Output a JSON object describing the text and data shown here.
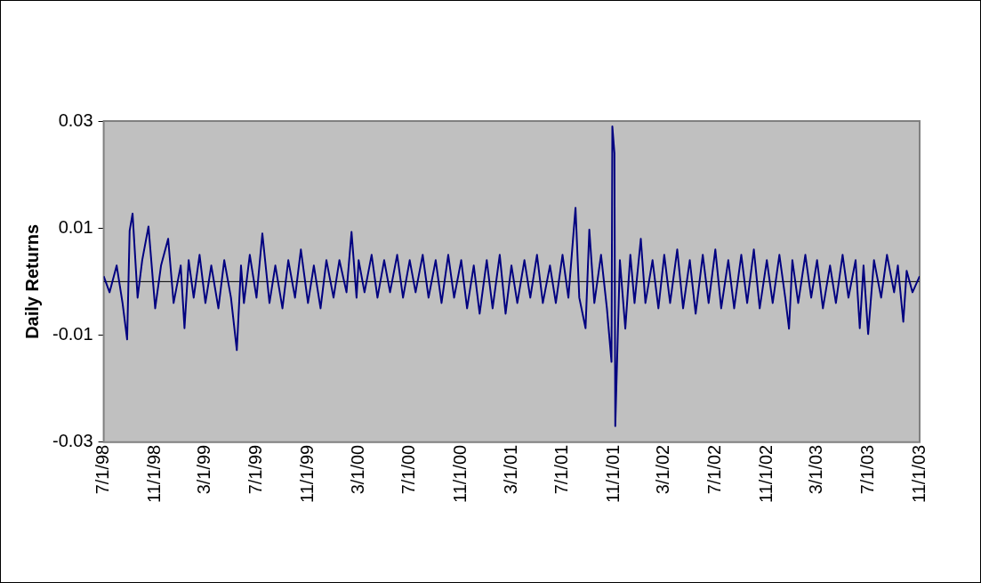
{
  "chart_data": {
    "type": "line",
    "ylabel": "Daily Returns",
    "ylim": [
      -0.03,
      0.03
    ],
    "yticks": [
      -0.03,
      -0.01,
      0.01,
      0.03
    ],
    "xlim": [
      "1998-07-01",
      "2003-11-01"
    ],
    "xticks": [
      {
        "value": "1998-07-01",
        "label": "7/1/98"
      },
      {
        "value": "1998-11-01",
        "label": "11/1/98"
      },
      {
        "value": "1999-03-01",
        "label": "3/1/99"
      },
      {
        "value": "1999-07-01",
        "label": "7/1/99"
      },
      {
        "value": "1999-11-01",
        "label": "11/1/99"
      },
      {
        "value": "2000-03-01",
        "label": "3/1/00"
      },
      {
        "value": "2000-07-01",
        "label": "7/1/00"
      },
      {
        "value": "2000-11-01",
        "label": "11/1/00"
      },
      {
        "value": "2001-03-01",
        "label": "3/1/01"
      },
      {
        "value": "2001-07-01",
        "label": "7/1/01"
      },
      {
        "value": "2001-11-01",
        "label": "11/1/01"
      },
      {
        "value": "2002-03-01",
        "label": "3/1/02"
      },
      {
        "value": "2002-07-01",
        "label": "7/1/02"
      },
      {
        "value": "2002-11-01",
        "label": "11/1/02"
      },
      {
        "value": "2003-03-01",
        "label": "3/1/03"
      },
      {
        "value": "2003-07-01",
        "label": "7/1/03"
      },
      {
        "value": "2003-11-01",
        "label": "11/1/03"
      }
    ],
    "ref_lines": [
      {
        "axis": "y",
        "value": 0,
        "color": "#000000"
      }
    ],
    "legend": false,
    "marker": "none",
    "line_style": "solid",
    "series": [
      {
        "color": "#000080",
        "x": [
          "1998-07-01",
          "1998-07-15",
          "1998-08-01",
          "1998-08-15",
          "1998-08-26",
          "1998-09-01",
          "1998-09-08",
          "1998-09-20",
          "1998-10-01",
          "1998-10-16",
          "1998-11-01",
          "1998-11-15",
          "1998-12-02",
          "1998-12-15",
          "1999-01-01",
          "1999-01-10",
          "1999-01-20",
          "1999-02-01",
          "1999-02-15",
          "1999-03-01",
          "1999-03-15",
          "1999-04-01",
          "1999-04-15",
          "1999-05-01",
          "1999-05-15",
          "1999-05-25",
          "1999-06-01",
          "1999-06-15",
          "1999-07-01",
          "1999-07-15",
          "1999-08-01",
          "1999-08-15",
          "1999-09-01",
          "1999-09-15",
          "1999-10-01",
          "1999-10-15",
          "1999-11-01",
          "1999-11-15",
          "1999-12-01",
          "1999-12-15",
          "2000-01-01",
          "2000-01-15",
          "2000-02-01",
          "2000-02-13",
          "2000-02-25",
          "2000-03-01",
          "2000-03-15",
          "2000-04-01",
          "2000-04-15",
          "2000-05-01",
          "2000-05-15",
          "2000-06-01",
          "2000-06-15",
          "2000-07-01",
          "2000-07-15",
          "2000-08-01",
          "2000-08-15",
          "2000-09-01",
          "2000-09-15",
          "2000-10-01",
          "2000-10-15",
          "2000-11-01",
          "2000-11-15",
          "2000-12-01",
          "2000-12-15",
          "2001-01-01",
          "2001-01-15",
          "2001-02-01",
          "2001-02-15",
          "2001-03-01",
          "2001-03-15",
          "2001-04-01",
          "2001-04-15",
          "2001-05-01",
          "2001-05-15",
          "2001-06-01",
          "2001-06-15",
          "2001-07-01",
          "2001-07-15",
          "2001-08-01",
          "2001-08-10",
          "2001-08-25",
          "2001-09-03",
          "2001-09-15",
          "2001-10-01",
          "2001-10-15",
          "2001-10-26",
          "2001-10-28",
          "2001-11-02",
          "2001-11-04",
          "2001-11-15",
          "2001-11-28",
          "2001-12-10",
          "2001-12-20",
          "2002-01-04",
          "2002-01-15",
          "2002-02-01",
          "2002-02-15",
          "2002-03-01",
          "2002-03-15",
          "2002-04-01",
          "2002-04-15",
          "2002-05-01",
          "2002-05-15",
          "2002-06-01",
          "2002-06-15",
          "2002-07-01",
          "2002-07-15",
          "2002-08-01",
          "2002-08-15",
          "2002-09-01",
          "2002-09-15",
          "2002-10-01",
          "2002-10-15",
          "2002-11-01",
          "2002-11-15",
          "2002-12-01",
          "2002-12-15",
          "2002-12-24",
          "2003-01-01",
          "2003-01-15",
          "2003-02-01",
          "2003-02-15",
          "2003-03-01",
          "2003-03-15",
          "2003-04-01",
          "2003-04-15",
          "2003-05-01",
          "2003-05-15",
          "2003-06-01",
          "2003-06-11",
          "2003-06-20",
          "2003-07-01",
          "2003-07-15",
          "2003-08-01",
          "2003-08-15",
          "2003-09-01",
          "2003-09-10",
          "2003-09-23",
          "2003-10-01",
          "2003-10-15",
          "2003-11-01"
        ],
        "values": [
          0.001,
          -0.002,
          0.003,
          -0.004,
          -0.0108,
          0.0095,
          0.0127,
          -0.003,
          0.004,
          0.0103,
          -0.005,
          0.003,
          0.008,
          -0.004,
          0.003,
          -0.0087,
          0.004,
          -0.003,
          0.005,
          -0.004,
          0.003,
          -0.005,
          0.004,
          -0.003,
          -0.0128,
          0.003,
          -0.004,
          0.005,
          -0.003,
          0.009,
          -0.004,
          0.003,
          -0.005,
          0.004,
          -0.003,
          0.006,
          -0.004,
          0.003,
          -0.005,
          0.004,
          -0.003,
          0.004,
          -0.002,
          0.0093,
          -0.003,
          0.004,
          -0.002,
          0.005,
          -0.003,
          0.004,
          -0.002,
          0.005,
          -0.003,
          0.004,
          -0.002,
          0.005,
          -0.003,
          0.004,
          -0.004,
          0.005,
          -0.003,
          0.004,
          -0.005,
          0.003,
          -0.006,
          0.004,
          -0.005,
          0.005,
          -0.006,
          0.003,
          -0.004,
          0.004,
          -0.003,
          0.005,
          -0.004,
          0.003,
          -0.004,
          0.005,
          -0.003,
          0.0138,
          -0.003,
          -0.0087,
          0.0097,
          -0.004,
          0.005,
          -0.005,
          -0.015,
          0.029,
          0.024,
          -0.027,
          0.004,
          -0.0088,
          0.005,
          -0.004,
          0.008,
          -0.004,
          0.004,
          -0.005,
          0.005,
          -0.004,
          0.006,
          -0.005,
          0.004,
          -0.006,
          0.005,
          -0.004,
          0.006,
          -0.005,
          0.004,
          -0.005,
          0.005,
          -0.004,
          0.006,
          -0.005,
          0.004,
          -0.004,
          0.005,
          -0.003,
          -0.0088,
          0.004,
          -0.004,
          0.005,
          -0.003,
          0.004,
          -0.005,
          0.003,
          -0.004,
          0.005,
          -0.003,
          0.004,
          -0.0087,
          0.003,
          -0.0098,
          0.004,
          -0.003,
          0.005,
          -0.002,
          0.003,
          -0.0075,
          0.002,
          -0.002,
          0.001
        ]
      }
    ]
  }
}
